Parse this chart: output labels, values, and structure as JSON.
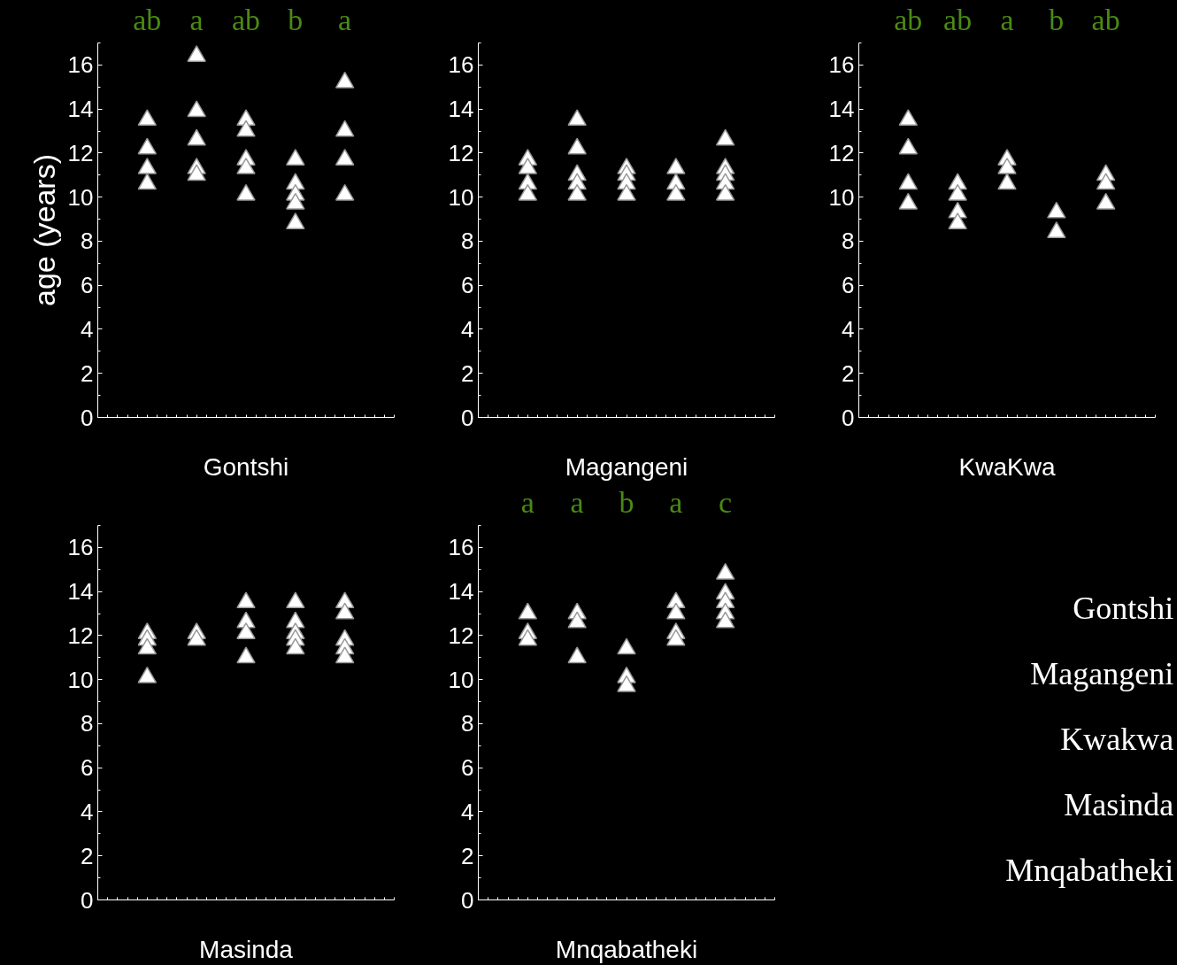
{
  "chart_data": [
    {
      "type": "scatter",
      "xlabel": "Gontshi",
      "ylabel": "age (years)",
      "categories": [
        null,
        null,
        null,
        null,
        null
      ],
      "ylim": [
        0,
        17
      ],
      "yticks": [
        0,
        2,
        4,
        6,
        8,
        10,
        12,
        14,
        16
      ],
      "marker": "triangle",
      "tick_labels": "y",
      "annotations": [
        "ab",
        "a",
        "ab",
        "b",
        "a"
      ],
      "series": [
        {
          "color": "#ffffff",
          "values": [
            13.5,
            16.4,
            13.5,
            11.7,
            15.2
          ]
        },
        {
          "color": "#ffffff",
          "values": [
            12.2,
            13.9,
            13.0,
            10.6,
            13.0
          ]
        },
        {
          "color": "#ffffff",
          "values": [
            11.3,
            12.6,
            11.7,
            10.1,
            11.7
          ]
        },
        {
          "color": "#ffffff",
          "values": [
            10.6,
            11.3,
            11.3,
            9.7,
            10.1
          ]
        },
        {
          "color": "#ffffff",
          "values": [
            null,
            11.0,
            10.1,
            8.8,
            null
          ]
        }
      ]
    },
    {
      "type": "scatter",
      "xlabel": "Magangeni",
      "categories": [
        null,
        null,
        null,
        null,
        null
      ],
      "ylim": [
        0,
        17
      ],
      "yticks": [
        0,
        2,
        4,
        6,
        8,
        10,
        12,
        14,
        16
      ],
      "marker": "triangle",
      "tick_labels": "y",
      "series": [
        {
          "color": "#ffffff",
          "values": [
            11.7,
            13.5,
            11.3,
            11.3,
            12.6
          ]
        },
        {
          "color": "#ffffff",
          "values": [
            11.3,
            12.2,
            11.0,
            10.6,
            11.3
          ]
        },
        {
          "color": "#ffffff",
          "values": [
            10.6,
            11.0,
            10.6,
            10.1,
            11.0
          ]
        },
        {
          "color": "#ffffff",
          "values": [
            10.1,
            10.6,
            10.1,
            null,
            10.6
          ]
        },
        {
          "color": "#ffffff",
          "values": [
            null,
            10.1,
            null,
            null,
            10.1
          ]
        }
      ]
    },
    {
      "type": "scatter",
      "xlabel": "KwaKwa",
      "categories": [
        null,
        null,
        null,
        null,
        null
      ],
      "ylim": [
        0,
        17
      ],
      "yticks": [
        0,
        2,
        4,
        6,
        8,
        10,
        12,
        14,
        16
      ],
      "marker": "triangle",
      "tick_labels": "y",
      "annotations": [
        "ab",
        "ab",
        "a",
        "b",
        "ab"
      ],
      "series": [
        {
          "color": "#ffffff",
          "values": [
            13.5,
            10.6,
            11.7,
            9.3,
            11.0
          ]
        },
        {
          "color": "#ffffff",
          "values": [
            12.2,
            10.1,
            11.3,
            8.4,
            10.6
          ]
        },
        {
          "color": "#ffffff",
          "values": [
            10.6,
            9.3,
            10.6,
            null,
            9.7
          ]
        },
        {
          "color": "#ffffff",
          "values": [
            9.7,
            8.8,
            null,
            null,
            null
          ]
        }
      ]
    },
    {
      "type": "scatter",
      "xlabel": "Masinda",
      "categories": [
        null,
        null,
        null,
        null,
        null
      ],
      "ylim": [
        0,
        17
      ],
      "yticks": [
        0,
        2,
        4,
        6,
        8,
        10,
        12,
        14,
        16
      ],
      "marker": "triangle",
      "tick_labels": "y",
      "series": [
        {
          "color": "#ffffff",
          "values": [
            12.1,
            12.1,
            13.5,
            13.5,
            13.5
          ]
        },
        {
          "color": "#ffffff",
          "values": [
            11.8,
            11.8,
            12.6,
            12.6,
            13.0
          ]
        },
        {
          "color": "#ffffff",
          "values": [
            11.4,
            null,
            12.1,
            12.1,
            11.8
          ]
        },
        {
          "color": "#ffffff",
          "values": [
            10.1,
            null,
            11.0,
            11.8,
            11.4
          ]
        },
        {
          "color": "#ffffff",
          "values": [
            null,
            null,
            null,
            11.4,
            11.0
          ]
        }
      ]
    },
    {
      "type": "scatter",
      "xlabel": "Mnqabatheki",
      "categories": [
        null,
        null,
        null,
        null,
        null
      ],
      "ylim": [
        0,
        17
      ],
      "yticks": [
        0,
        2,
        4,
        6,
        8,
        10,
        12,
        14,
        16
      ],
      "marker": "triangle",
      "tick_labels": "y",
      "annotations": [
        "a",
        "a",
        "b",
        "a",
        "c"
      ],
      "series": [
        {
          "color": "#ffffff",
          "values": [
            13.0,
            13.0,
            11.4,
            13.5,
            14.8
          ]
        },
        {
          "color": "#ffffff",
          "values": [
            12.1,
            12.6,
            10.1,
            13.0,
            13.9
          ]
        },
        {
          "color": "#ffffff",
          "values": [
            11.8,
            11.0,
            9.7,
            12.1,
            13.5
          ]
        },
        {
          "color": "#ffffff",
          "values": [
            null,
            null,
            null,
            11.8,
            13.0
          ]
        },
        {
          "color": "#ffffff",
          "values": [
            null,
            null,
            null,
            null,
            12.6
          ]
        }
      ]
    },
    {
      "type": "other",
      "annotations": [
        "Gontshi",
        "Magangeni",
        "Kwakwa",
        "Masinda",
        "Mnqabatheki"
      ]
    }
  ]
}
